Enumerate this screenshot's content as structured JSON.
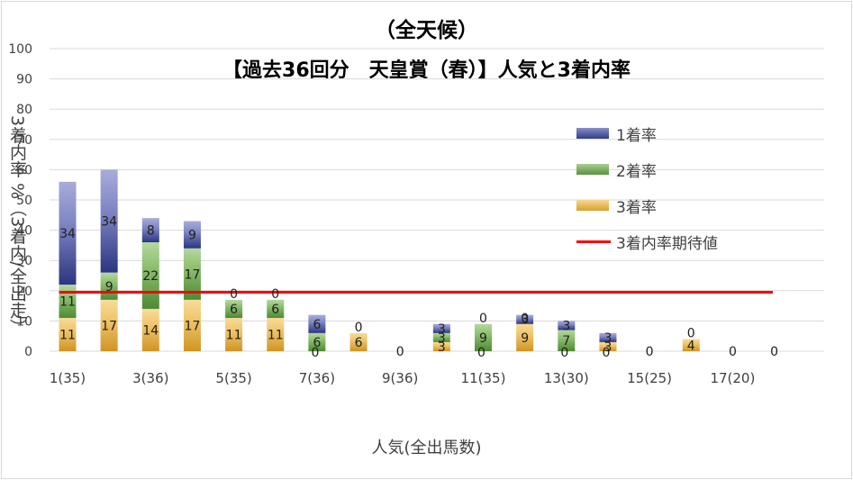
{
  "chart_data": {
    "type": "bar",
    "stacked": true,
    "title": "（全天候）",
    "subtitle": "【過去36回分　天皇賞（春）】人気と3着内率",
    "xlabel": "人気(全出馬数)",
    "ylabel": "3着内率 %（3着内/全出走）",
    "ylim": [
      0,
      100
    ],
    "yticks": [
      0,
      10,
      20,
      30,
      40,
      50,
      60,
      70,
      80,
      90,
      100
    ],
    "grid": true,
    "legend_position": "top-right",
    "x_tick_labels": [
      "1(35)",
      "3(36)",
      "5(35)",
      "7(36)",
      "9(36)",
      "11(35)",
      "13(30)",
      "15(25)",
      "17(20)"
    ],
    "categories": [
      "1",
      "2",
      "3",
      "4",
      "5",
      "6",
      "7",
      "8",
      "9",
      "10",
      "11",
      "12",
      "13",
      "14",
      "15",
      "16",
      "17",
      "18"
    ],
    "series": [
      {
        "name": "3着率",
        "color": "#f0c060",
        "values": [
          11,
          17,
          14,
          17,
          11,
          11,
          0,
          6,
          0,
          3,
          0,
          9,
          0,
          3,
          0,
          4,
          0,
          0
        ]
      },
      {
        "name": "2着率",
        "color": "#70a850",
        "values": [
          11,
          9,
          22,
          17,
          6,
          6,
          6,
          0,
          0,
          3,
          9,
          0,
          7,
          0,
          0,
          0,
          0,
          0
        ]
      },
      {
        "name": "1着率",
        "color": "#404c98",
        "values": [
          34,
          34,
          8,
          9,
          0,
          0,
          6,
          0,
          0,
          3,
          0,
          3,
          3,
          3,
          0,
          0,
          0,
          0
        ]
      }
    ],
    "point_labels": {
      "3着率": [
        "11",
        "17",
        "14",
        "17",
        "11",
        "11",
        "",
        "6",
        "0",
        "3",
        "",
        "9",
        "",
        "3",
        "0",
        "4",
        "0",
        "0"
      ],
      "2着率": [
        "11",
        "9",
        "22",
        "17",
        "6",
        "6",
        "6",
        "",
        "",
        "3",
        "9",
        "0",
        "7",
        "",
        "",
        "",
        "",
        ""
      ],
      "1着率": [
        "34",
        "34",
        "8",
        "9",
        "0",
        "0",
        "6",
        "0",
        "",
        "3",
        "0",
        "3",
        "3",
        "3",
        "",
        "0",
        "",
        ""
      ],
      "bottom": [
        "",
        "",
        "",
        "",
        "",
        "",
        "0",
        "",
        "",
        "",
        "0",
        "",
        "0",
        "0",
        "",
        "",
        "",
        ""
      ]
    },
    "reference_line": {
      "name": "3着内率期待値",
      "value": 19.5,
      "color": "#ff0000"
    }
  }
}
